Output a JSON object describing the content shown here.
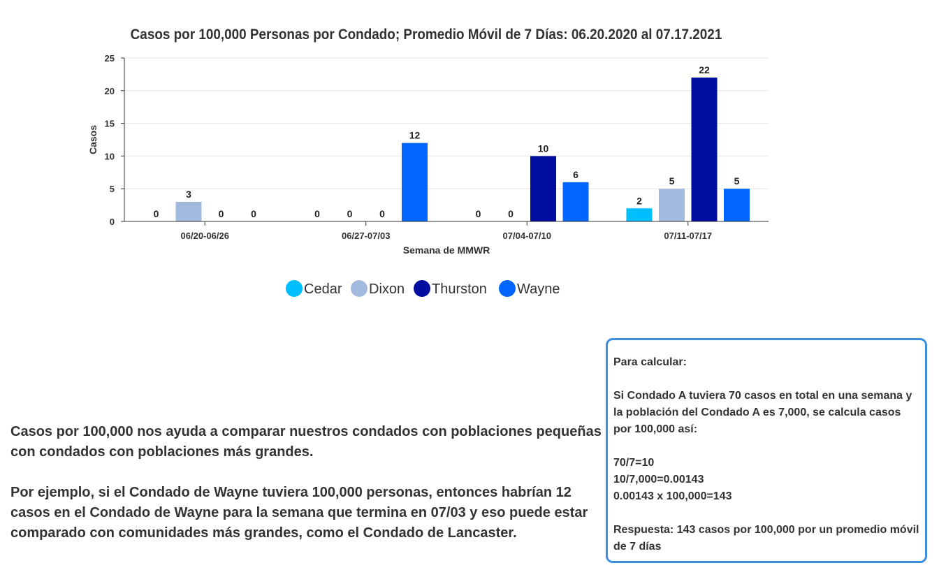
{
  "chart_data": {
    "type": "bar",
    "title": "Casos por 100,000 Personas por Condado; Promedio Móvil de 7 Días: 06.20.2020 al 07.17.2021",
    "xlabel": "Semana de MMWR",
    "ylabel": "Casos",
    "ylim": [
      0,
      25
    ],
    "yticks": [
      0,
      5,
      10,
      15,
      20,
      25
    ],
    "categories": [
      "06/20-06/26",
      "06/27-07/03",
      "07/04-07/10",
      "07/11-07/17"
    ],
    "series": [
      {
        "name": "Cedar",
        "color": "#00bfff",
        "values": [
          0,
          0,
          0,
          2
        ]
      },
      {
        "name": "Dixon",
        "color": "#a3badf",
        "values": [
          3,
          0,
          0,
          5
        ]
      },
      {
        "name": "Thurston",
        "color": "#000ea0",
        "values": [
          0,
          0,
          10,
          22
        ]
      },
      {
        "name": "Wayne",
        "color": "#0066ff",
        "values": [
          0,
          12,
          6,
          5
        ]
      }
    ],
    "grid": true,
    "legend_position": "bottom"
  },
  "explainer": {
    "paragraph1": "Casos por 100,000 nos ayuda a comparar nuestros condados con poblaciones pequeñas con condados con poblaciones más grandes.",
    "paragraph2": "Por ejemplo, si el Condado de Wayne tuviera 100,000 personas, entonces habrían 12 casos en el Condado de Wayne para la semana que termina en 07/03 y eso puede estar comparado con comunidades más grandes, como el Condado de Lancaster."
  },
  "calc_box": {
    "heading": "Para calcular:",
    "example": "Si Condado A tuviera 70 casos en total en una semana y la población del Condado A es 7,000, se calcula casos por 100,000 así:",
    "step1": "70/7=10",
    "step2": "10/7,000=0.00143",
    "step3": "0.00143 x 100,000=143",
    "answer": "Respuesta: 143 casos por 100,000 por un promedio móvil de 7 días",
    "border_color": "#3d8fe0"
  }
}
